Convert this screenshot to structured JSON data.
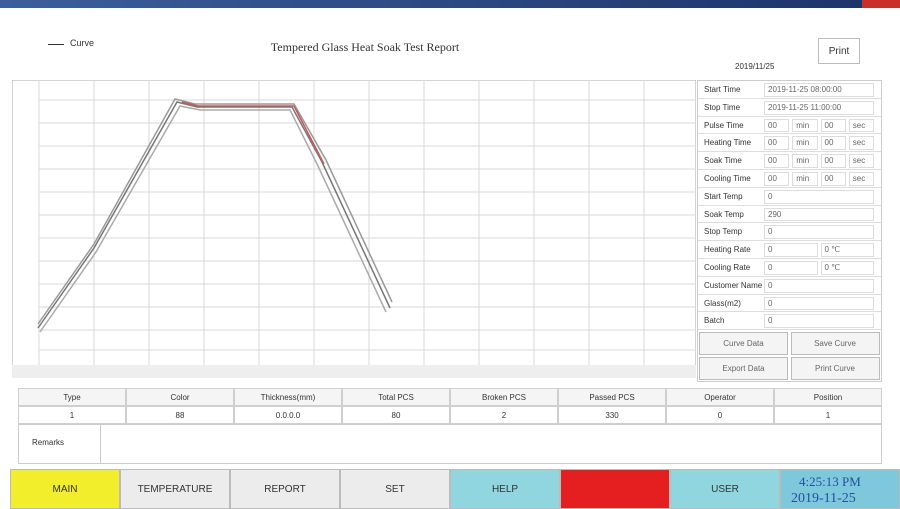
{
  "header": {
    "legend": "Curve",
    "title": "Tempered Glass Heat Soak Test Report",
    "print": "Print",
    "date": "2019/11/25"
  },
  "panel": {
    "rows": [
      {
        "label": "Start Time",
        "values": [
          "2019-11-25 08:00:00"
        ]
      },
      {
        "label": "Stop Time",
        "values": [
          "2019-11-25 11:00:00"
        ]
      },
      {
        "label": "Pulse Time",
        "values": [
          "00",
          "min",
          "00",
          "sec"
        ]
      },
      {
        "label": "Heating Time",
        "values": [
          "00",
          "min",
          "00",
          "sec"
        ]
      },
      {
        "label": "Soak Time",
        "values": [
          "00",
          "min",
          "00",
          "sec"
        ]
      },
      {
        "label": "Cooling Time",
        "values": [
          "00",
          "min",
          "00",
          "sec"
        ]
      },
      {
        "label": "Start Temp",
        "values": [
          "0"
        ]
      },
      {
        "label": "Soak Temp",
        "values": [
          "290"
        ]
      },
      {
        "label": "Stop Temp",
        "values": [
          "0"
        ]
      },
      {
        "label": "Heating Rate",
        "values": [
          "0",
          "0 ℃"
        ]
      },
      {
        "label": "Cooling Rate",
        "values": [
          "0",
          "0 ℃"
        ]
      },
      {
        "label": "Customer Name",
        "values": [
          "0"
        ]
      },
      {
        "label": "Glass(m2)",
        "values": [
          "0"
        ]
      },
      {
        "label": "Batch",
        "values": [
          "0"
        ]
      }
    ],
    "buttons": [
      "Curve Data",
      "Save Curve",
      "Export Data",
      "Print Curve"
    ]
  },
  "table": {
    "headers": [
      "Type",
      "Color",
      "Thickness(mm)",
      "Total PCS",
      "Broken PCS",
      "Passed PCS",
      "Operator",
      "Position"
    ],
    "rows": [
      [
        "1",
        "88",
        "0.0.0.0",
        "80",
        "2",
        "330",
        "0",
        "1"
      ]
    ]
  },
  "remarks": {
    "label": "Remarks"
  },
  "nav": {
    "buttons": [
      "MAIN",
      "TEMPERATURE",
      "REPORT",
      "SET",
      "HELP",
      "USER"
    ],
    "time": "4:25:13 PM",
    "date": "2019-11-25"
  }
}
